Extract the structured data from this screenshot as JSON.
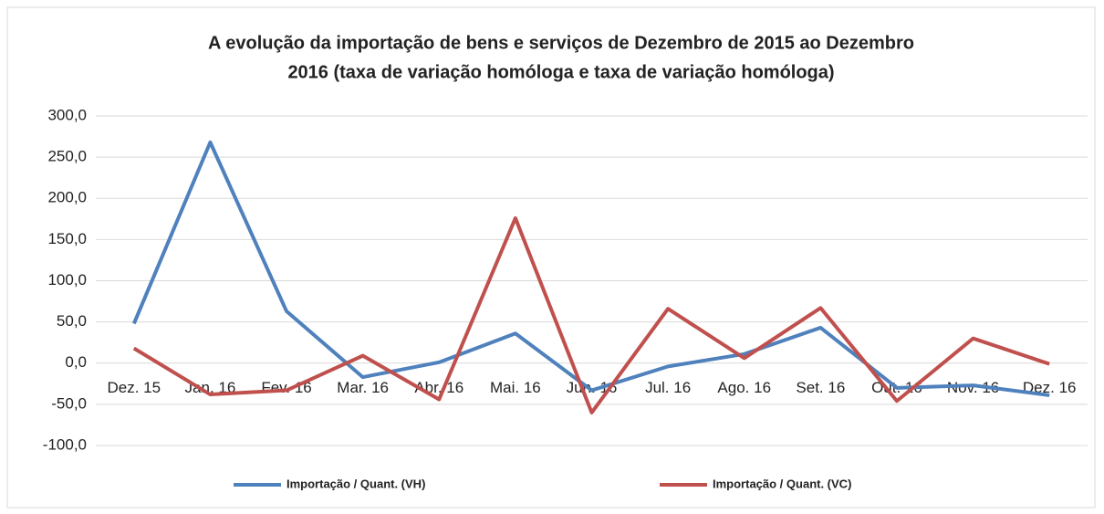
{
  "chart_data": {
    "type": "line",
    "title": [
      "A evolução da importação de bens e serviços de Dezembro de 2015 ao Dezembro",
      "2016 (taxa de variação homóloga e taxa de variação homóloga)"
    ],
    "categories": [
      "Dez. 15",
      "Jan. 16",
      "Fev. 16",
      "Mar. 16",
      "Abr. 16",
      "Mai. 16",
      "Jun. 16",
      "Jul. 16",
      "Ago. 16",
      "Set. 16",
      "Out. 16",
      "Nov. 16",
      "Dez. 16"
    ],
    "series": [
      {
        "name": "Importação / Quant. (VH)",
        "color": "#4f81bd",
        "values": [
          48,
          268,
          63,
          -17,
          1,
          36,
          -33,
          -4,
          11,
          43,
          -30,
          -27,
          -39
        ]
      },
      {
        "name": "Importação / Quant. (VC)",
        "color": "#c0504d",
        "values": [
          18,
          -38,
          -33,
          9,
          -44,
          176,
          -60,
          66,
          6,
          67,
          -46,
          30,
          -1
        ]
      }
    ],
    "ylim": [
      -100,
      300
    ],
    "yticks": [
      {
        "value": -100,
        "label": "-100,0"
      },
      {
        "value": -50,
        "label": "-50,0"
      },
      {
        "value": 0,
        "label": "0,0"
      },
      {
        "value": 50,
        "label": "50,0"
      },
      {
        "value": 100,
        "label": "100,0"
      },
      {
        "value": 150,
        "label": "150,0"
      },
      {
        "value": 200,
        "label": "200,0"
      },
      {
        "value": 250,
        "label": "250,0"
      },
      {
        "value": 300,
        "label": "300,0"
      }
    ],
    "grid": true
  }
}
